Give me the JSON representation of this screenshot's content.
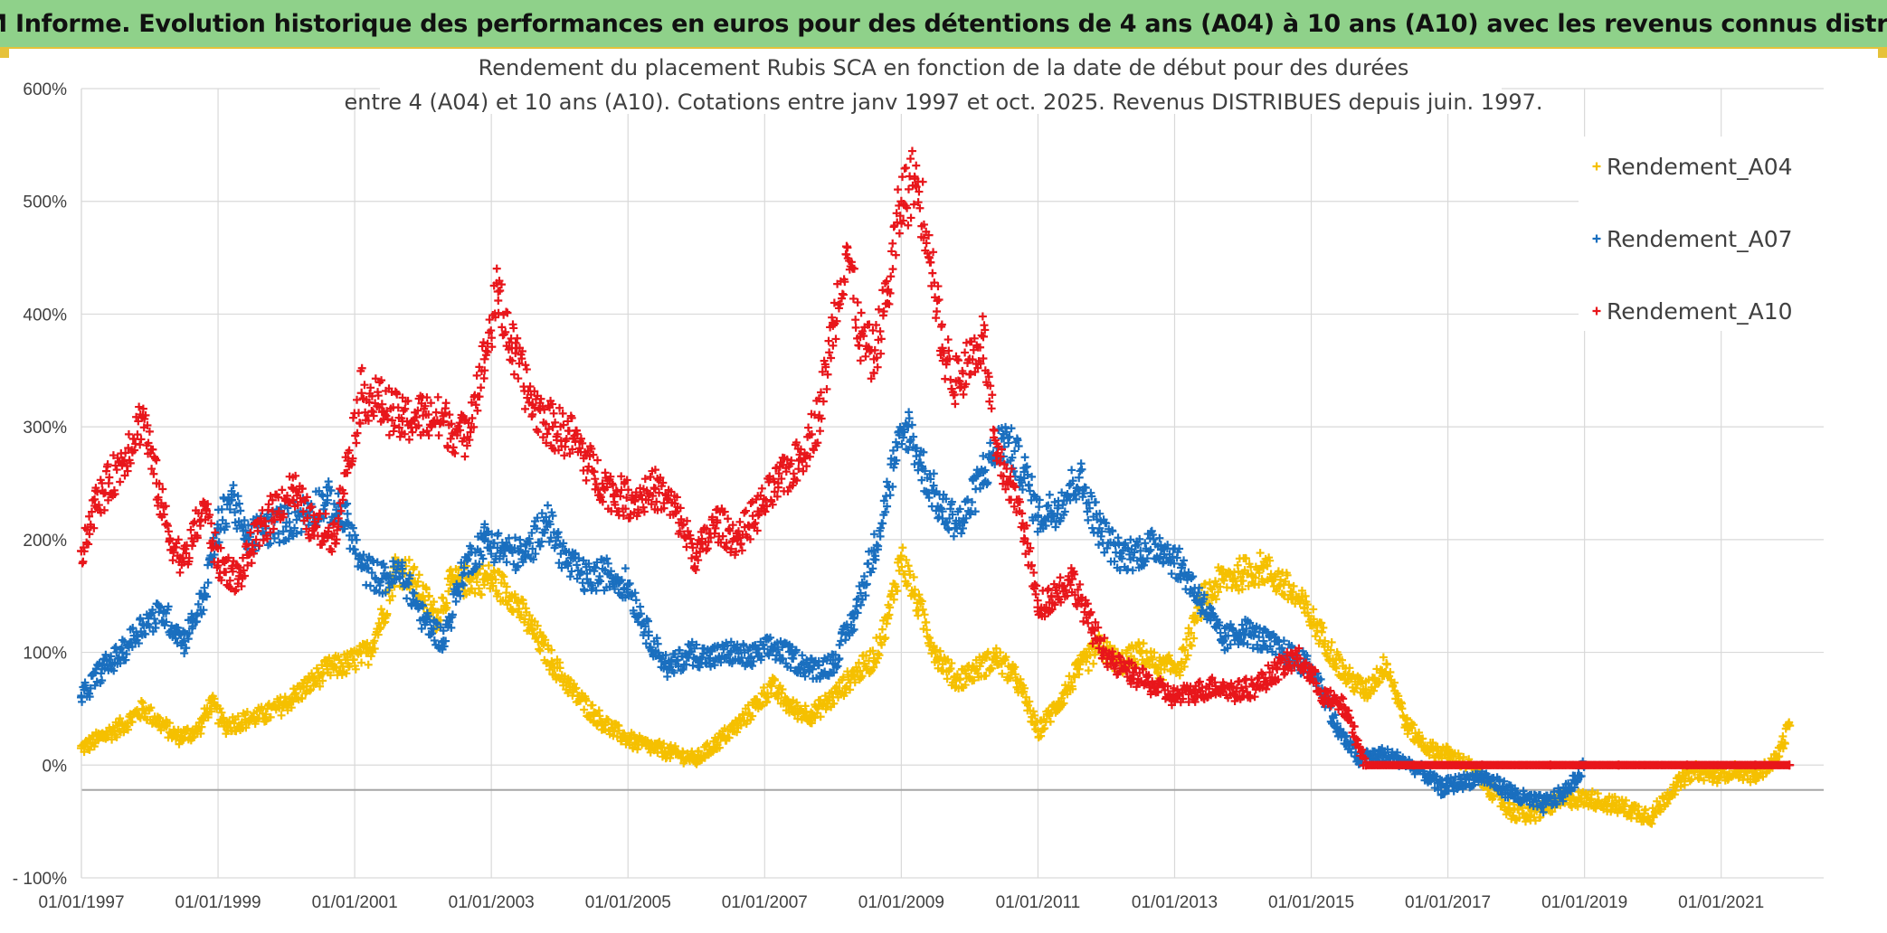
{
  "banner": {
    "title": "ADAM Informe. Evolution historique des performances en euros pour des détentions de 4 ans (A04) à 10 ans (A10) avec les revenus connus distribués"
  },
  "chart_data": {
    "type": "scatter",
    "title_lines": [
      "Rendement du placement Rubis SCA en fonction de la date de début pour des durées",
      "entre 4 (A04) et 10 ans (A10). Cotations entre janv 1997 et oct. 2025. Revenus DISTRIBUES depuis juin. 1997."
    ],
    "xlabel": "",
    "ylabel": "",
    "xlim": [
      1997.0,
      2022.5
    ],
    "ylim": [
      -100,
      600
    ],
    "x_ticks": [
      "01/01/1997",
      "01/01/1999",
      "01/01/2001",
      "01/01/2003",
      "01/01/2005",
      "01/01/2007",
      "01/01/2009",
      "01/01/2011",
      "01/01/2013",
      "01/01/2015",
      "01/01/2017",
      "01/01/2019",
      "01/01/2021"
    ],
    "x_tick_values": [
      1997,
      1999,
      2001,
      2003,
      2005,
      2007,
      2009,
      2011,
      2013,
      2015,
      2017,
      2019,
      2021
    ],
    "y_ticks": [
      "- 100%",
      "0%",
      "100%",
      "200%",
      "300%",
      "400%",
      "500%",
      "600%"
    ],
    "y_tick_values": [
      -100,
      0,
      100,
      200,
      300,
      400,
      500,
      600
    ],
    "grid": true,
    "legend_position": "right",
    "marker": "+",
    "series": [
      {
        "name": "Rendement_A04",
        "color": "#f5c000",
        "points": [
          [
            1997.0,
            15
          ],
          [
            1997.3,
            25
          ],
          [
            1997.6,
            35
          ],
          [
            1997.9,
            50
          ],
          [
            1998.1,
            40
          ],
          [
            1998.4,
            25
          ],
          [
            1998.7,
            30
          ],
          [
            1998.9,
            55
          ],
          [
            1999.1,
            35
          ],
          [
            1999.4,
            40
          ],
          [
            1999.7,
            45
          ],
          [
            2000.0,
            55
          ],
          [
            2000.3,
            70
          ],
          [
            2000.6,
            85
          ],
          [
            2000.9,
            90
          ],
          [
            2001.2,
            100
          ],
          [
            2001.4,
            130
          ],
          [
            2001.6,
            175
          ],
          [
            2001.8,
            170
          ],
          [
            2002.0,
            150
          ],
          [
            2002.2,
            130
          ],
          [
            2002.4,
            160
          ],
          [
            2002.7,
            165
          ],
          [
            2003.0,
            165
          ],
          [
            2003.3,
            150
          ],
          [
            2003.6,
            120
          ],
          [
            2003.9,
            90
          ],
          [
            2004.2,
            65
          ],
          [
            2004.5,
            45
          ],
          [
            2004.8,
            30
          ],
          [
            2005.1,
            20
          ],
          [
            2005.4,
            15
          ],
          [
            2005.7,
            10
          ],
          [
            2006.0,
            5
          ],
          [
            2006.3,
            20
          ],
          [
            2006.6,
            35
          ],
          [
            2006.9,
            55
          ],
          [
            2007.1,
            70
          ],
          [
            2007.4,
            50
          ],
          [
            2007.7,
            45
          ],
          [
            2008.0,
            60
          ],
          [
            2008.3,
            80
          ],
          [
            2008.6,
            95
          ],
          [
            2008.8,
            130
          ],
          [
            2009.0,
            185
          ],
          [
            2009.2,
            150
          ],
          [
            2009.5,
            100
          ],
          [
            2009.8,
            75
          ],
          [
            2010.1,
            85
          ],
          [
            2010.4,
            95
          ],
          [
            2010.7,
            75
          ],
          [
            2011.0,
            30
          ],
          [
            2011.3,
            55
          ],
          [
            2011.6,
            85
          ],
          [
            2011.9,
            105
          ],
          [
            2012.2,
            90
          ],
          [
            2012.5,
            100
          ],
          [
            2012.8,
            85
          ],
          [
            2013.1,
            90
          ],
          [
            2013.4,
            145
          ],
          [
            2013.7,
            165
          ],
          [
            2014.0,
            170
          ],
          [
            2014.3,
            175
          ],
          [
            2014.6,
            160
          ],
          [
            2014.9,
            140
          ],
          [
            2015.2,
            110
          ],
          [
            2015.5,
            80
          ],
          [
            2015.8,
            65
          ],
          [
            2016.1,
            90
          ],
          [
            2016.4,
            35
          ],
          [
            2016.7,
            15
          ],
          [
            2017.0,
            10
          ],
          [
            2017.3,
            0
          ],
          [
            2017.6,
            -20
          ],
          [
            2017.9,
            -40
          ],
          [
            2018.2,
            -45
          ],
          [
            2018.5,
            -35
          ],
          [
            2018.8,
            -30
          ],
          [
            2019.1,
            -30
          ],
          [
            2019.4,
            -35
          ],
          [
            2019.7,
            -40
          ],
          [
            2020.0,
            -45
          ],
          [
            2020.3,
            -20
          ],
          [
            2020.6,
            -5
          ],
          [
            2020.9,
            -10
          ],
          [
            2021.2,
            -5
          ],
          [
            2021.5,
            -10
          ],
          [
            2021.8,
            5
          ],
          [
            2022.0,
            35
          ]
        ]
      },
      {
        "name": "Rendement_A07",
        "color": "#1a6fbf",
        "points": [
          [
            1997.0,
            60
          ],
          [
            1997.3,
            85
          ],
          [
            1997.6,
            100
          ],
          [
            1997.9,
            125
          ],
          [
            1998.2,
            135
          ],
          [
            1998.5,
            110
          ],
          [
            1998.8,
            150
          ],
          [
            1999.0,
            210
          ],
          [
            1999.2,
            240
          ],
          [
            1999.4,
            200
          ],
          [
            1999.7,
            210
          ],
          [
            2000.0,
            215
          ],
          [
            2000.3,
            225
          ],
          [
            2000.6,
            235
          ],
          [
            2000.9,
            215
          ],
          [
            2001.1,
            175
          ],
          [
            2001.4,
            165
          ],
          [
            2001.7,
            170
          ],
          [
            2002.0,
            130
          ],
          [
            2002.3,
            110
          ],
          [
            2002.6,
            175
          ],
          [
            2002.9,
            200
          ],
          [
            2003.2,
            190
          ],
          [
            2003.5,
            185
          ],
          [
            2003.8,
            220
          ],
          [
            2004.1,
            180
          ],
          [
            2004.4,
            165
          ],
          [
            2004.7,
            170
          ],
          [
            2005.0,
            160
          ],
          [
            2005.3,
            115
          ],
          [
            2005.6,
            85
          ],
          [
            2005.9,
            100
          ],
          [
            2006.2,
            95
          ],
          [
            2006.5,
            100
          ],
          [
            2006.8,
            95
          ],
          [
            2007.1,
            105
          ],
          [
            2007.4,
            95
          ],
          [
            2007.7,
            85
          ],
          [
            2008.0,
            90
          ],
          [
            2008.3,
            130
          ],
          [
            2008.6,
            190
          ],
          [
            2008.9,
            270
          ],
          [
            2009.1,
            300
          ],
          [
            2009.3,
            265
          ],
          [
            2009.6,
            225
          ],
          [
            2009.9,
            215
          ],
          [
            2010.2,
            260
          ],
          [
            2010.5,
            290
          ],
          [
            2010.8,
            260
          ],
          [
            2011.0,
            220
          ],
          [
            2011.3,
            230
          ],
          [
            2011.6,
            255
          ],
          [
            2011.9,
            210
          ],
          [
            2012.2,
            185
          ],
          [
            2012.5,
            190
          ],
          [
            2012.8,
            195
          ],
          [
            2013.1,
            175
          ],
          [
            2013.4,
            145
          ],
          [
            2013.7,
            110
          ],
          [
            2014.0,
            120
          ],
          [
            2014.3,
            110
          ],
          [
            2014.6,
            100
          ],
          [
            2014.9,
            90
          ],
          [
            2015.1,
            75
          ],
          [
            2015.4,
            30
          ],
          [
            2015.7,
            5
          ],
          [
            2016.0,
            10
          ],
          [
            2016.3,
            5
          ],
          [
            2016.6,
            -5
          ],
          [
            2016.9,
            -20
          ],
          [
            2017.2,
            -15
          ],
          [
            2017.5,
            -10
          ],
          [
            2017.8,
            -20
          ],
          [
            2018.1,
            -30
          ],
          [
            2018.4,
            -35
          ],
          [
            2018.7,
            -25
          ],
          [
            2018.9,
            -10
          ],
          [
            2019.0,
            0
          ]
        ]
      },
      {
        "name": "Rendement_A10",
        "color": "#e8161b",
        "points": [
          [
            1997.0,
            190
          ],
          [
            1997.2,
            230
          ],
          [
            1997.4,
            250
          ],
          [
            1997.6,
            270
          ],
          [
            1997.9,
            310
          ],
          [
            1998.1,
            250
          ],
          [
            1998.3,
            200
          ],
          [
            1998.5,
            180
          ],
          [
            1998.8,
            230
          ],
          [
            1999.0,
            180
          ],
          [
            1999.3,
            165
          ],
          [
            1999.5,
            195
          ],
          [
            1999.8,
            225
          ],
          [
            2000.1,
            245
          ],
          [
            2000.4,
            210
          ],
          [
            2000.7,
            205
          ],
          [
            2000.9,
            270
          ],
          [
            2001.1,
            330
          ],
          [
            2001.4,
            320
          ],
          [
            2001.7,
            305
          ],
          [
            2002.0,
            310
          ],
          [
            2002.3,
            305
          ],
          [
            2002.6,
            290
          ],
          [
            2002.9,
            360
          ],
          [
            2003.1,
            420
          ],
          [
            2003.3,
            370
          ],
          [
            2003.6,
            320
          ],
          [
            2003.9,
            300
          ],
          [
            2004.2,
            290
          ],
          [
            2004.5,
            260
          ],
          [
            2004.8,
            240
          ],
          [
            2005.1,
            235
          ],
          [
            2005.4,
            245
          ],
          [
            2005.7,
            225
          ],
          [
            2006.0,
            185
          ],
          [
            2006.3,
            215
          ],
          [
            2006.6,
            200
          ],
          [
            2006.9,
            225
          ],
          [
            2007.2,
            250
          ],
          [
            2007.5,
            270
          ],
          [
            2007.8,
            310
          ],
          [
            2008.0,
            390
          ],
          [
            2008.2,
            460
          ],
          [
            2008.4,
            380
          ],
          [
            2008.6,
            360
          ],
          [
            2008.8,
            420
          ],
          [
            2009.0,
            500
          ],
          [
            2009.2,
            520
          ],
          [
            2009.4,
            470
          ],
          [
            2009.6,
            370
          ],
          [
            2009.8,
            340
          ],
          [
            2010.0,
            360
          ],
          [
            2010.2,
            380
          ],
          [
            2010.4,
            270
          ],
          [
            2010.6,
            250
          ],
          [
            2010.8,
            210
          ],
          [
            2011.0,
            140
          ],
          [
            2011.2,
            150
          ],
          [
            2011.5,
            165
          ],
          [
            2011.8,
            120
          ],
          [
            2012.1,
            90
          ],
          [
            2012.4,
            80
          ],
          [
            2012.7,
            70
          ],
          [
            2013.0,
            60
          ],
          [
            2013.3,
            65
          ],
          [
            2013.6,
            70
          ],
          [
            2013.9,
            65
          ],
          [
            2014.2,
            70
          ],
          [
            2014.5,
            85
          ],
          [
            2014.8,
            95
          ],
          [
            2015.0,
            80
          ],
          [
            2015.2,
            60
          ],
          [
            2015.5,
            50
          ],
          [
            2015.8,
            0
          ],
          [
            2016.5,
            0
          ],
          [
            2017.5,
            0
          ],
          [
            2018.5,
            0
          ],
          [
            2019.5,
            0
          ],
          [
            2020.5,
            0
          ],
          [
            2021.5,
            0
          ],
          [
            2022.0,
            0
          ]
        ]
      }
    ]
  }
}
